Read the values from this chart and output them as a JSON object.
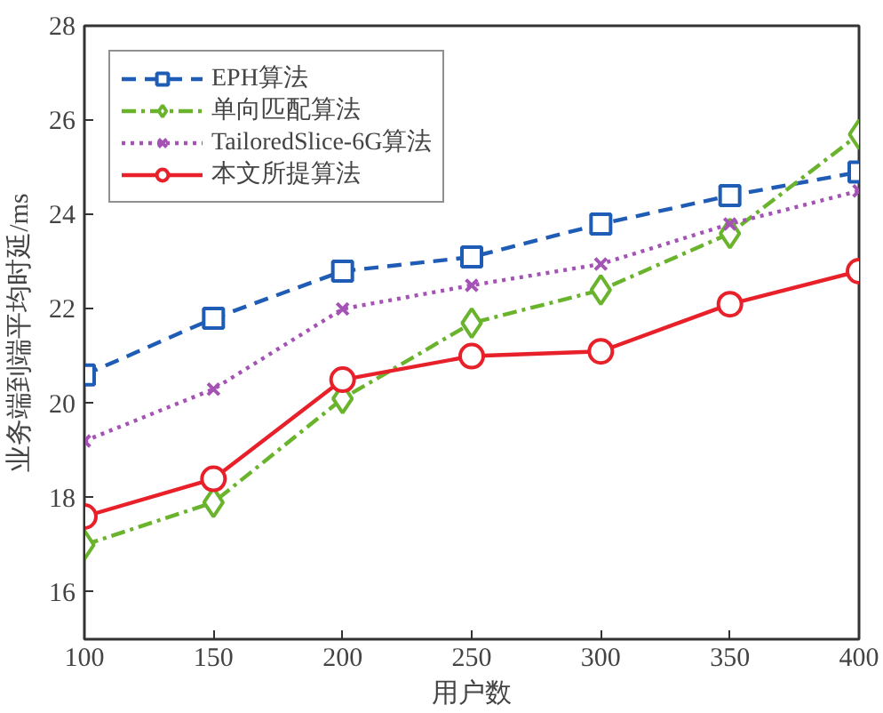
{
  "chart_data": {
    "type": "line",
    "xlabel": "用户数",
    "ylabel": "业务端到端平均时延/ms",
    "x": [
      100,
      150,
      200,
      250,
      300,
      350,
      400
    ],
    "xlim": [
      100,
      400
    ],
    "xticks": [
      100,
      150,
      200,
      250,
      300,
      350,
      400
    ],
    "ylim": [
      15,
      28
    ],
    "yticks": [
      16,
      18,
      20,
      22,
      24,
      26,
      28
    ],
    "grid": false,
    "legend": "top left",
    "series": [
      {
        "name": "EPH算法",
        "color": "#1f5cb5",
        "marker": "square",
        "line_style": "dashed",
        "values": [
          20.6,
          21.8,
          22.8,
          23.1,
          23.8,
          24.4,
          24.9
        ]
      },
      {
        "name": "单向匹配算法",
        "color": "#6ab42d",
        "marker": "diamond",
        "line_style": "dashdot",
        "values": [
          17.0,
          17.9,
          20.1,
          21.7,
          22.4,
          23.6,
          25.7
        ]
      },
      {
        "name": "TailoredSlice-6G算法",
        "color": "#a552b5",
        "marker": "cross",
        "line_style": "dotted",
        "values": [
          19.2,
          20.3,
          22.0,
          22.5,
          22.95,
          23.8,
          24.5
        ]
      },
      {
        "name": "本文所提算法",
        "color": "#e8202a",
        "marker": "circle",
        "line_style": "solid",
        "values": [
          17.6,
          18.4,
          20.5,
          21.0,
          21.1,
          22.1,
          22.8
        ]
      }
    ]
  }
}
